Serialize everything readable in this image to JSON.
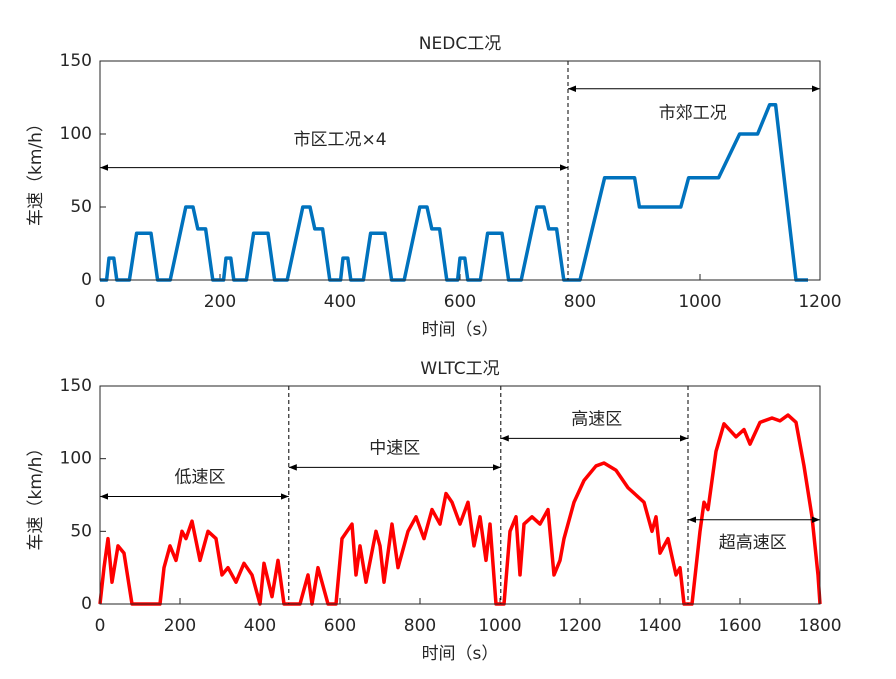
{
  "chart_data": [
    {
      "type": "line",
      "title": "NEDC工况",
      "xlabel": "时间（s）",
      "ylabel": "车速（km/h）",
      "color": "#0072bd",
      "x": [
        0,
        11,
        15,
        23,
        28,
        49,
        61,
        85,
        96,
        117,
        143,
        155,
        163,
        176,
        188,
        195,
        206,
        210,
        218,
        223,
        244,
        256,
        280,
        291,
        312,
        338,
        350,
        358,
        371,
        383,
        390,
        401,
        405,
        413,
        418,
        439,
        451,
        475,
        486,
        507,
        533,
        545,
        553,
        566,
        578,
        585,
        596,
        600,
        608,
        613,
        634,
        646,
        670,
        681,
        702,
        728,
        740,
        748,
        761,
        773,
        780,
        800,
        841,
        891,
        899,
        968,
        981,
        1031,
        1066,
        1096,
        1116,
        1126,
        1160,
        1180
      ],
      "values": [
        0,
        0,
        15,
        15,
        0,
        0,
        32,
        32,
        0,
        0,
        50,
        50,
        35,
        35,
        0,
        0,
        0,
        15,
        15,
        0,
        0,
        32,
        32,
        0,
        0,
        50,
        50,
        35,
        35,
        0,
        0,
        0,
        15,
        15,
        0,
        0,
        32,
        32,
        0,
        0,
        50,
        50,
        35,
        35,
        0,
        0,
        0,
        15,
        15,
        0,
        0,
        32,
        32,
        0,
        0,
        50,
        50,
        35,
        35,
        0,
        0,
        0,
        70,
        70,
        50,
        50,
        70,
        70,
        100,
        100,
        120,
        120,
        0,
        0
      ],
      "xlim": [
        0,
        1200
      ],
      "xticks": [
        0,
        200,
        400,
        600,
        800,
        1000,
        1200
      ],
      "ylim": [
        0,
        150
      ],
      "yticks": [
        0,
        50,
        100,
        150
      ],
      "dividers": [
        780
      ],
      "arrows": [
        {
          "x": [
            0,
            780
          ],
          "y": 77
        },
        {
          "x": [
            780,
            1200
          ],
          "y": 131
        }
      ],
      "annotations": [
        {
          "text": "市区工况×4",
          "x": 400,
          "y": 96
        },
        {
          "text": "市郊工况",
          "x": 988,
          "y": 114
        }
      ]
    },
    {
      "type": "line",
      "title": "WLTC工况",
      "xlabel": "时间（s）",
      "ylabel": "车速（km/h）",
      "color": "#ff0000",
      "x": [
        0,
        10,
        20,
        30,
        45,
        60,
        80,
        95,
        100,
        150,
        160,
        175,
        190,
        205,
        215,
        230,
        250,
        270,
        290,
        305,
        320,
        340,
        360,
        380,
        400,
        410,
        430,
        445,
        460,
        470,
        500,
        520,
        530,
        545,
        570,
        590,
        605,
        630,
        640,
        650,
        665,
        690,
        700,
        710,
        730,
        745,
        770,
        790,
        810,
        830,
        850,
        865,
        880,
        900,
        920,
        935,
        950,
        965,
        975,
        990,
        1010,
        1025,
        1040,
        1050,
        1060,
        1080,
        1100,
        1120,
        1135,
        1150,
        1160,
        1185,
        1210,
        1240,
        1260,
        1290,
        1320,
        1340,
        1360,
        1380,
        1390,
        1400,
        1420,
        1440,
        1450,
        1460,
        1480,
        1500,
        1510,
        1520,
        1540,
        1560,
        1590,
        1610,
        1625,
        1650,
        1680,
        1700,
        1720,
        1740,
        1760,
        1780,
        1795,
        1800
      ],
      "values": [
        0,
        25,
        45,
        15,
        40,
        35,
        0,
        0,
        0,
        0,
        25,
        40,
        30,
        50,
        45,
        57,
        30,
        50,
        45,
        20,
        25,
        15,
        28,
        20,
        0,
        28,
        5,
        30,
        0,
        0,
        0,
        20,
        0,
        25,
        0,
        0,
        45,
        55,
        20,
        40,
        15,
        50,
        40,
        15,
        55,
        25,
        50,
        60,
        45,
        65,
        55,
        76,
        70,
        55,
        70,
        40,
        60,
        30,
        55,
        0,
        0,
        50,
        60,
        20,
        55,
        60,
        55,
        65,
        20,
        30,
        45,
        70,
        85,
        95,
        97,
        92,
        80,
        75,
        70,
        50,
        60,
        35,
        45,
        20,
        25,
        0,
        0,
        50,
        70,
        65,
        105,
        124,
        115,
        120,
        110,
        125,
        128,
        126,
        130,
        125,
        95,
        60,
        20,
        0
      ],
      "xlim": [
        0,
        1800
      ],
      "xticks": [
        0,
        200,
        400,
        600,
        800,
        1000,
        1200,
        1400,
        1600,
        1800
      ],
      "ylim": [
        0,
        150
      ],
      "yticks": [
        0,
        50,
        100,
        150
      ],
      "dividers": [
        472,
        1002,
        1470
      ],
      "arrows": [
        {
          "x": [
            0,
            472
          ],
          "y": 74
        },
        {
          "x": [
            472,
            1002
          ],
          "y": 94
        },
        {
          "x": [
            1002,
            1470
          ],
          "y": 114
        },
        {
          "x": [
            1470,
            1800
          ],
          "y": 58
        }
      ],
      "annotations": [
        {
          "text": "低速区",
          "x": 250,
          "y": 87
        },
        {
          "text": "中速区",
          "x": 737,
          "y": 107
        },
        {
          "text": "高速区",
          "x": 1242,
          "y": 127
        },
        {
          "text": "超高速区",
          "x": 1632,
          "y": 42
        }
      ]
    }
  ]
}
